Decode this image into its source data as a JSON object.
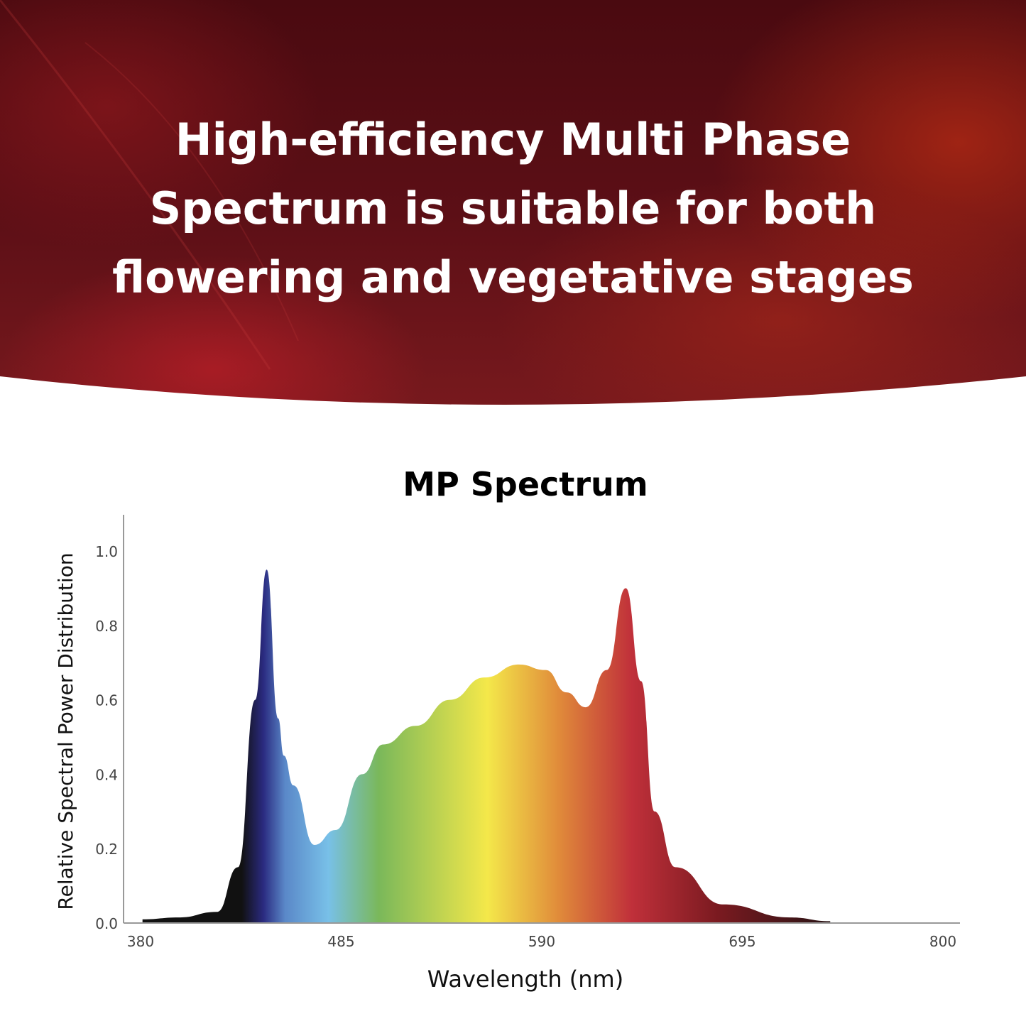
{
  "hero": {
    "title_lines": [
      "High-efficiency Multi Phase",
      "Spectrum is suitable for both",
      "flowering and vegetative stages"
    ]
  },
  "chart_data": {
    "type": "area",
    "title": "MP Spectrum",
    "xlabel": "Wavelength (nm)",
    "ylabel": "Relative Spectral Power Distribution",
    "xlim": [
      380,
      800
    ],
    "ylim": [
      0,
      1.1
    ],
    "x_ticks": [
      "380",
      "485",
      "590",
      "695",
      "800"
    ],
    "y_ticks": [
      "0.0",
      "0.2",
      "0.4",
      "0.6",
      "0.8",
      "1.0"
    ],
    "grid": false,
    "series": [
      {
        "name": "MP Spectrum",
        "x": [
          381,
          400,
          420,
          431,
          440,
          446,
          452,
          455,
          460,
          471,
          482,
          496,
          507,
          524,
          542,
          560,
          578,
          592,
          603,
          613,
          624,
          634,
          642,
          649,
          660,
          685,
          720,
          741
        ],
        "y": [
          0.01,
          0.015,
          0.03,
          0.15,
          0.6,
          0.95,
          0.55,
          0.45,
          0.37,
          0.21,
          0.25,
          0.4,
          0.48,
          0.53,
          0.6,
          0.66,
          0.695,
          0.68,
          0.62,
          0.58,
          0.68,
          0.9,
          0.65,
          0.3,
          0.15,
          0.05,
          0.015,
          0.005
        ]
      }
    ],
    "colors": {
      "violet": "#2a2a80",
      "blue": "#5a88c8",
      "cyan": "#78c0e8",
      "green": "#7ab85a",
      "yellow": "#f4e84a",
      "orange": "#e08a3a",
      "red": "#c0303a",
      "darkred": "#7a1a20",
      "black": "#111111"
    }
  }
}
